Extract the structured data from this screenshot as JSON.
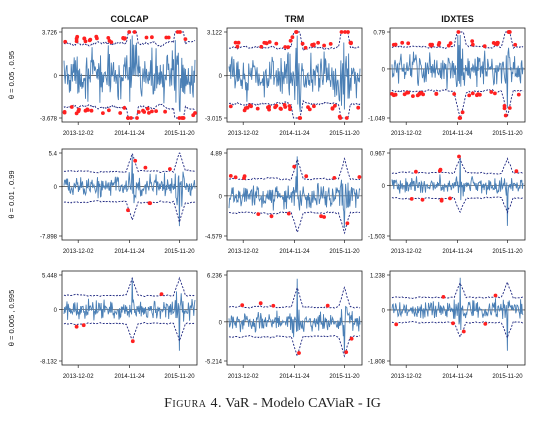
{
  "figure": {
    "caption_label": "Figura 4.",
    "caption_text": "VaR - Modelo CAViaR - IG",
    "colors": {
      "returns": "#4a7fb5",
      "var_band": "#1a237e",
      "exceedance": "#ff2020",
      "zero_line": "#111111"
    }
  },
  "chart_data": [
    {
      "type": "line",
      "title": "COLCAP",
      "ylabel": "θ = 0.05 , 0.95",
      "x_ticks": [
        "2013-12-02",
        "2014-11-24",
        "2015-11-20"
      ],
      "y_ticks": [
        "3.726",
        "0",
        "-3.678"
      ],
      "ylim": [
        -3.678,
        3.726
      ],
      "band": 0.62,
      "exceedances": 60,
      "series": [
        {
          "values": "daily returns"
        },
        {
          "values": "VaR bands"
        }
      ]
    },
    {
      "type": "line",
      "title": "TRM",
      "ylabel": "",
      "x_ticks": [
        "2013-12-02",
        "2014-11-24",
        "2015-11-20"
      ],
      "y_ticks": [
        "3.122",
        "0",
        "-3.015"
      ],
      "ylim": [
        -3.015,
        3.122
      ],
      "band": 0.55,
      "exceedances": 60,
      "series": [
        {
          "values": "daily returns"
        },
        {
          "values": "VaR bands"
        }
      ]
    },
    {
      "type": "line",
      "title": "IDXTES",
      "ylabel": "",
      "x_ticks": [
        "2013-12-02",
        "2014-11-24",
        "2015-11-20"
      ],
      "y_ticks": [
        "0.79",
        "0",
        "-1.049"
      ],
      "ylim": [
        -1.049,
        0.79
      ],
      "band": 0.5,
      "exceedances": 55,
      "series": [
        {
          "values": "daily returns"
        },
        {
          "values": "VaR bands"
        }
      ]
    },
    {
      "type": "line",
      "title": "",
      "ylabel": "θ = 0.01 , 0.99",
      "x_ticks": [
        "2013-12-02",
        "2014-11-24",
        "2015-11-20"
      ],
      "y_ticks": [
        "5.4",
        "0",
        "-7.898"
      ],
      "ylim": [
        -7.898,
        5.4
      ],
      "band": 0.38,
      "exceedances": 6,
      "series": [
        {
          "values": "daily returns"
        },
        {
          "values": "VaR bands"
        }
      ]
    },
    {
      "type": "line",
      "title": "",
      "ylabel": "",
      "x_ticks": [
        "2013-12-02",
        "2014-11-24",
        "2015-11-20"
      ],
      "y_ticks": [
        "4.89",
        "0",
        "-4.579"
      ],
      "ylim": [
        -4.579,
        4.89
      ],
      "band": 0.35,
      "exceedances": 14,
      "series": [
        {
          "values": "daily returns"
        },
        {
          "values": "VaR bands"
        }
      ]
    },
    {
      "type": "line",
      "title": "",
      "ylabel": "",
      "x_ticks": [
        "2013-12-02",
        "2014-11-24",
        "2015-11-20"
      ],
      "y_ticks": [
        "0.967",
        "0",
        "-1.503"
      ],
      "ylim": [
        -1.503,
        0.967
      ],
      "band": 0.32,
      "exceedances": 10,
      "series": [
        {
          "values": "daily returns"
        },
        {
          "values": "VaR bands"
        }
      ]
    },
    {
      "type": "line",
      "title": "",
      "ylabel": "θ = 0.005 , 0.995",
      "x_ticks": [
        "2013-12-02",
        "2014-11-24",
        "2015-11-20"
      ],
      "y_ticks": [
        "5.448",
        "0",
        "-8.132"
      ],
      "ylim": [
        -8.132,
        5.448
      ],
      "band": 0.34,
      "exceedances": 4,
      "series": [
        {
          "values": "daily returns"
        },
        {
          "values": "VaR bands"
        }
      ]
    },
    {
      "type": "line",
      "title": "",
      "ylabel": "",
      "x_ticks": [
        "2013-12-02",
        "2014-11-24",
        "2015-11-20"
      ],
      "y_ticks": [
        "6.236",
        "0",
        "-5.214"
      ],
      "ylim": [
        -5.214,
        6.236
      ],
      "band": 0.32,
      "exceedances": 7,
      "series": [
        {
          "values": "daily returns"
        },
        {
          "values": "VaR bands"
        }
      ]
    },
    {
      "type": "line",
      "title": "",
      "ylabel": "",
      "x_ticks": [
        "2013-12-02",
        "2014-11-24",
        "2015-11-20"
      ],
      "y_ticks": [
        "1.238",
        "0",
        "-1.808"
      ],
      "ylim": [
        -1.808,
        1.238
      ],
      "band": 0.3,
      "exceedances": 6,
      "series": [
        {
          "values": "daily returns"
        },
        {
          "values": "VaR bands"
        }
      ]
    }
  ]
}
